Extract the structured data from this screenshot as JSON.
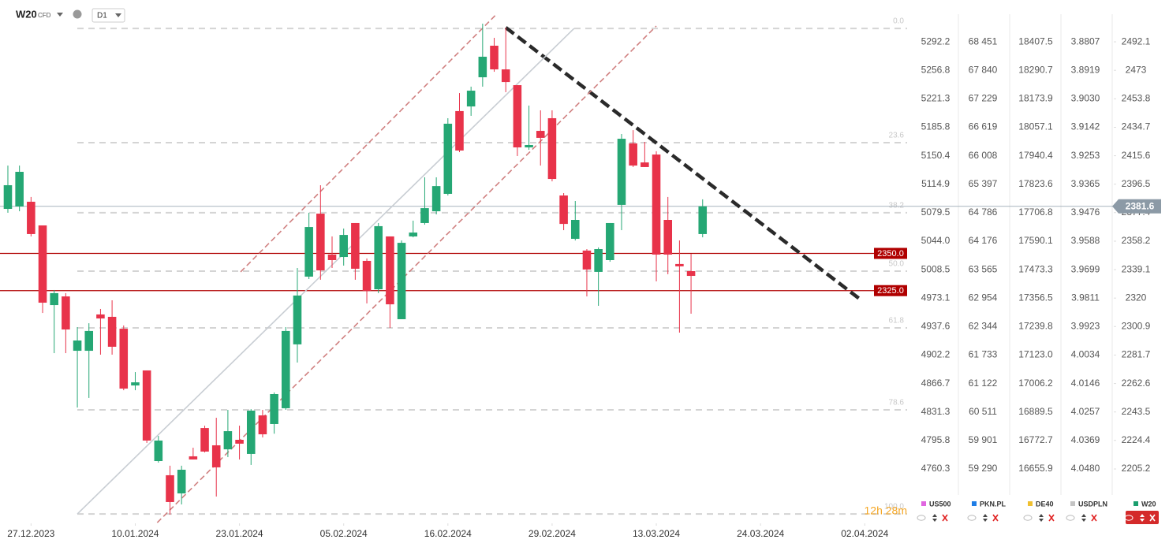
{
  "chart_data": {
    "type": "candlestick",
    "symbol": "W20",
    "symbol_suffix": "CFD",
    "timeframe": "D1",
    "up_color": "#25a774",
    "down_color": "#e8334a",
    "open": [
      2379.9,
      2381.5,
      2384.7,
      2368.8,
      2315.3,
      2321.1,
      2284.6,
      2284.6,
      2309.0,
      2307.4,
      2299.4,
      2261.3,
      2271.4,
      2210.5,
      2201.0,
      2188.8,
      2213.7,
      2232.7,
      2221.1,
      2218.4,
      2224.8,
      2215.3,
      2241.2,
      2235.4,
      2246.0,
      2288.9,
      2334.4,
      2376.7,
      2349.2,
      2347.6,
      2370.4,
      2345.0,
      2325.9,
      2361.4,
      2305.8,
      2361.4,
      2370.4,
      2378.3,
      2390.0,
      2445.6,
      2448.7,
      2468.3,
      2489.5,
      2473.6,
      2463.0,
      2421.2,
      2432.3,
      2440.8,
      2388.9,
      2359.8,
      2351.9,
      2337.6,
      2345.5,
      2382.6,
      2423.9,
      2411.1,
      2416.4,
      2372.5,
      2342.9,
      2338.1,
      2363.0
    ],
    "high": [
      2409.0,
      2409.0,
      2387.9,
      2368.8,
      2325.4,
      2323.3,
      2300.5,
      2303.1,
      2312.7,
      2318.5,
      2301.6,
      2270.3,
      2271.4,
      2227.4,
      2207.4,
      2207.4,
      2219.5,
      2234.3,
      2239.6,
      2244.9,
      2234.3,
      2245.4,
      2244.9,
      2256.6,
      2300.5,
      2340.2,
      2377.3,
      2395.8,
      2361.4,
      2366.7,
      2370.4,
      2346.6,
      2370.4,
      2361.4,
      2358.7,
      2372.0,
      2401.1,
      2401.1,
      2440.8,
      2457.7,
      2462.0,
      2504.3,
      2494.8,
      2501.7,
      2463.0,
      2449.3,
      2446.1,
      2446.1,
      2390.5,
      2385.2,
      2352.9,
      2354.0,
      2370.4,
      2430.2,
      2432.8,
      2424.9,
      2418.6,
      2387.9,
      2358.7,
      2349.7,
      2386.3
    ],
    "low": [
      2377.3,
      2378.3,
      2361.4,
      2310.0,
      2283.0,
      2283.0,
      2246.5,
      2252.9,
      2282.0,
      2282.0,
      2258.1,
      2258.1,
      2222.7,
      2209.5,
      2174.5,
      2181.4,
      2211.6,
      2216.3,
      2186.7,
      2213.2,
      2211.6,
      2207.9,
      2226.4,
      2228.9,
      2244.9,
      2276.7,
      2332.8,
      2332.3,
      2340.2,
      2341.8,
      2332.3,
      2316.4,
      2323.3,
      2300.0,
      2305.8,
      2360.8,
      2369.3,
      2376.2,
      2388.9,
      2418.0,
      2442.4,
      2462.0,
      2472.0,
      2458.3,
      2415.4,
      2419.6,
      2409.0,
      2398.4,
      2365.6,
      2358.7,
      2321.1,
      2314.8,
      2344.4,
      2365.6,
      2408.0,
      2408.0,
      2331.2,
      2336.0,
      2296.8,
      2309.5,
      2360.8
    ],
    "close": [
      2395.8,
      2404.8,
      2363.0,
      2316.9,
      2323.3,
      2298.9,
      2291.5,
      2297.9,
      2306.3,
      2287.3,
      2259.2,
      2263.4,
      2224.3,
      2224.3,
      2183.0,
      2204.7,
      2211.6,
      2216.9,
      2206.3,
      2230.6,
      2222.2,
      2244.4,
      2228.5,
      2255.5,
      2297.9,
      2321.7,
      2367.7,
      2338.6,
      2345.5,
      2362.4,
      2339.7,
      2324.9,
      2368.3,
      2315.8,
      2357.1,
      2364.0,
      2380.4,
      2395.2,
      2437.1,
      2419.1,
      2459.3,
      2482.1,
      2473.6,
      2465.1,
      2421.2,
      2422.8,
      2427.6,
      2400.0,
      2369.8,
      2372.5,
      2339.2,
      2352.9,
      2370.4,
      2427.0,
      2409.0,
      2408.0,
      2349.2,
      2349.2,
      2341.3,
      2334.9,
      2381.6
    ],
    "xlim": [
      -0.68,
      77.66
    ],
    "ylim": [
      2170.8,
      2520.2
    ],
    "yticks": [
      2492.1,
      2473.0,
      2453.8,
      2434.7,
      2415.6,
      2396.5,
      2377.4,
      2358.2,
      2339.1,
      2320.0,
      2300.9,
      2281.7,
      2262.6,
      2243.5,
      2224.4,
      2205.2
    ],
    "xticks": [
      {
        "value": 2,
        "label": "27.12.2023"
      },
      {
        "value": 11,
        "label": "10.01.2024"
      },
      {
        "value": 20,
        "label": "23.01.2024"
      },
      {
        "value": 29,
        "label": "05.02.2024"
      },
      {
        "value": 38,
        "label": "16.02.2024"
      },
      {
        "value": 47,
        "label": "29.02.2024"
      },
      {
        "value": 56,
        "label": "13.03.2024"
      },
      {
        "value": 65,
        "label": "24.03.2024"
      },
      {
        "value": 74,
        "label": "02.04.2024"
      }
    ],
    "last_price": 2381.6,
    "last_price_color": "#8c9aa6",
    "levels": [
      {
        "value": 2350,
        "label": "2350.0",
        "color": "#b00000"
      },
      {
        "value": 2325,
        "label": "2325.0",
        "color": "#b00000"
      }
    ],
    "fib_levels": [
      {
        "value": 2501.1,
        "label": "0.0"
      },
      {
        "value": 2424.4,
        "label": "23.6"
      },
      {
        "value": 2377.3,
        "label": "38.2"
      },
      {
        "value": 2338.1,
        "label": "50.0"
      },
      {
        "value": 2300.0,
        "label": "61.8"
      },
      {
        "value": 2244.9,
        "label": "78.6"
      },
      {
        "value": 2175.0,
        "label": "100.0"
      }
    ],
    "trend_lines": [
      {
        "x": [
          43.0,
          73.8
        ],
        "y": [
          2501.7,
          2318.0
        ],
        "color": "#2a2a2a",
        "style": "dashed-bold"
      },
      {
        "x": [
          6.0,
          48.9
        ],
        "y": [
          2175.0,
          2501.1
        ],
        "color": "#c8cdd3",
        "style": "solid"
      },
      {
        "x": [
          20.1,
          42.2
        ],
        "y": [
          2337.6,
          2510.7
        ],
        "color": "#d08080",
        "style": "dashed"
      },
      {
        "x": [
          12.9,
          56.0
        ],
        "y": [
          2169.2,
          2502.7
        ],
        "color": "#d08080",
        "style": "dashed"
      }
    ],
    "countdown": "12h 28m",
    "comparison_axes": [
      {
        "name": "US500",
        "color": "#e066e0",
        "labels": [
          "5292.2",
          "5256.8",
          "5221.3",
          "5185.8",
          "5150.4",
          "5114.9",
          "5079.5",
          "5044.0",
          "5008.5",
          "4973.1",
          "4937.6",
          "4902.2",
          "4866.7",
          "4831.3",
          "4795.8",
          "4760.3"
        ]
      },
      {
        "name": "PKN.PL",
        "color": "#1e7de6",
        "labels": [
          "68 451",
          "67 840",
          "67 229",
          "66 619",
          "66 008",
          "65 397",
          "64 786",
          "64 176",
          "63 565",
          "62 954",
          "62 344",
          "61 733",
          "61 122",
          "60 511",
          "59 901",
          "59 290"
        ]
      },
      {
        "name": "DE40",
        "color": "#f0c030",
        "labels": [
          "18407.5",
          "18290.7",
          "18173.9",
          "18057.1",
          "17940.4",
          "17823.6",
          "17706.8",
          "17590.1",
          "17473.3",
          "17356.5",
          "17239.8",
          "17123.0",
          "17006.2",
          "16889.5",
          "16772.7",
          "16655.9"
        ]
      },
      {
        "name": "USDPLN",
        "color": "#c4c4c4",
        "labels": [
          "3.8807",
          "3.8919",
          "3.9030",
          "3.9142",
          "3.9253",
          "3.9365",
          "3.9476",
          "3.9588",
          "3.9699",
          "3.9811",
          "3.9923",
          "4.0034",
          "4.0146",
          "4.0257",
          "4.0369",
          "4.0480"
        ]
      }
    ],
    "main_axis_color": "#1a9e6e"
  }
}
